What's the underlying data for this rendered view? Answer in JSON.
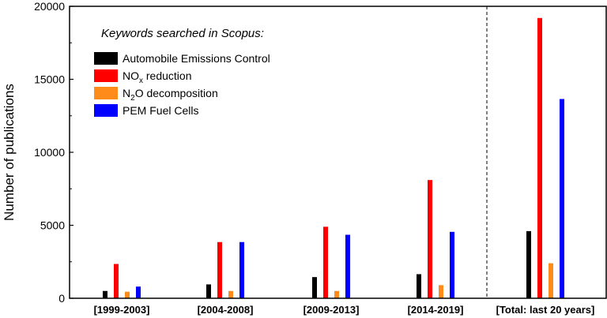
{
  "chart_data": {
    "type": "bar",
    "title": "",
    "xlabel": "",
    "ylabel": "Number of publications",
    "ylim": [
      0,
      20000
    ],
    "yticks": [
      0,
      5000,
      10000,
      15000,
      20000
    ],
    "categories": [
      "[1999-2003]",
      "[2004-2008]",
      "[2009-2013]",
      "[2014-2019]",
      "[Total: last 20 years]"
    ],
    "series": [
      {
        "name": "Automobile Emissions Control",
        "color": "#000000",
        "values": [
          500,
          950,
          1450,
          1650,
          4600
        ]
      },
      {
        "name": "NOx reduction",
        "color": "#ff0000",
        "values": [
          2350,
          3850,
          4900,
          8100,
          19200
        ]
      },
      {
        "name": "N2O decomposition",
        "color": "#ff8c1a",
        "values": [
          450,
          500,
          500,
          900,
          2400
        ]
      },
      {
        "name": "PEM Fuel Cells",
        "color": "#0000ff",
        "values": [
          800,
          3850,
          4350,
          4550,
          13650
        ]
      }
    ],
    "legend": {
      "title": "Keywords searched in Scopus:",
      "position": "top-left",
      "entries": [
        {
          "text": "Automobile Emissions Control"
        },
        {
          "text": "NO",
          "sub": "x",
          "rest": " reduction"
        },
        {
          "text": "N",
          "sub": "2",
          "rest": "O decomposition"
        },
        {
          "text": "PEM Fuel Cells"
        }
      ]
    },
    "separator_before_category": 4,
    "separator_style": "dashed"
  }
}
